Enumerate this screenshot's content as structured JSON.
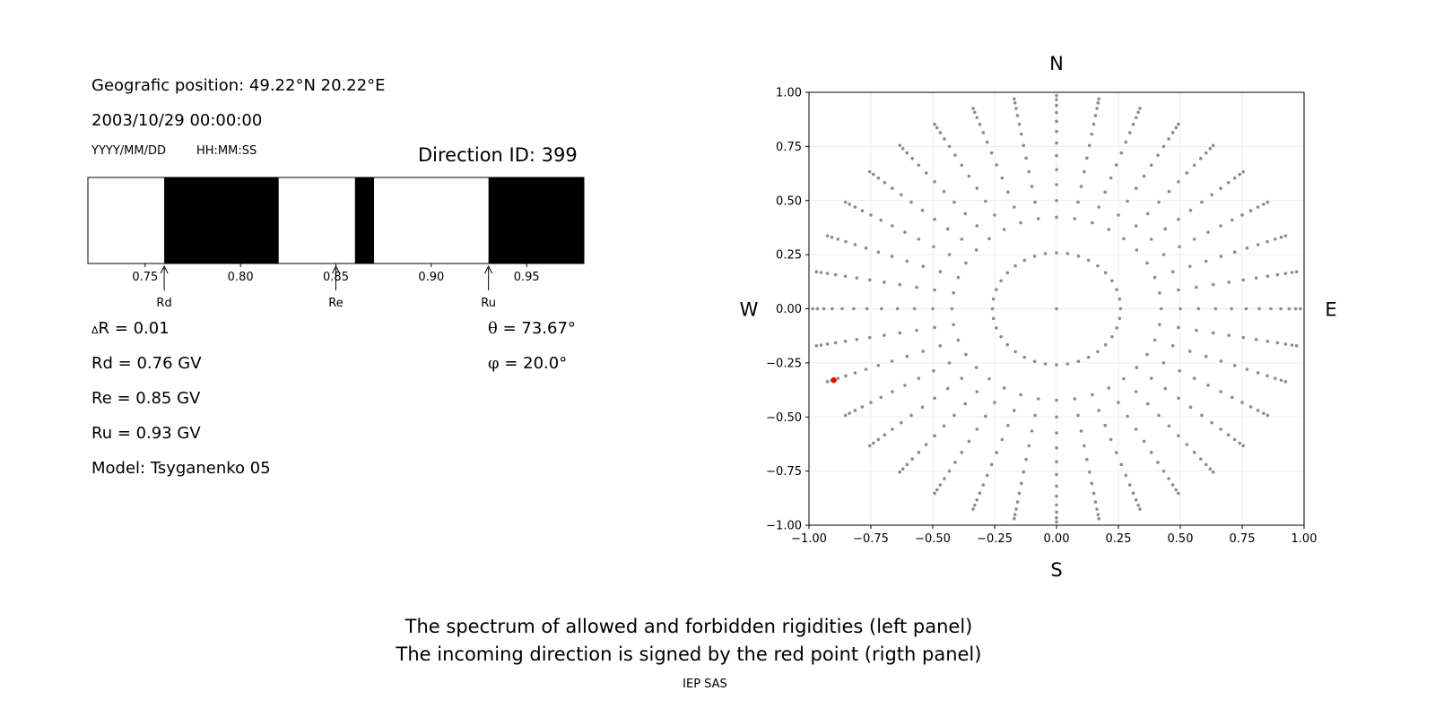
{
  "info": {
    "position": "Geografic position: 49.22°N 20.22°E",
    "datetime": "2003/10/29 00:00:00",
    "date_format": "YYYY/MM/DD",
    "time_format": "HH:MM:SS",
    "direction_id": "Direction ID: 399",
    "delta_r_symbol": "Δ",
    "delta_r": "R = 0.01",
    "rd": "Rd = 0.76 GV",
    "re": "Re = 0.85 GV",
    "ru": "Ru = 0.93 GV",
    "model": "Model: Tsyganenko 05",
    "theta_symbol": "θ",
    "theta": " = 73.67°",
    "phi_symbol": "φ",
    "phi": " = 20.0°"
  },
  "captions": {
    "line1": "The spectrum of allowed and forbidden rigidities (left panel)",
    "line2": "The incoming direction is signed by the red point (rigth panel)",
    "footer": "IEP SAS"
  },
  "chart_data": [
    {
      "type": "bar",
      "name": "rigidity-spectrum",
      "xlim": [
        0.72,
        0.98
      ],
      "xticks": [
        0.75,
        0.8,
        0.85,
        0.9,
        0.95
      ],
      "tick_labels": [
        "0.75",
        "0.80",
        "0.85",
        "0.90",
        "0.95"
      ],
      "forbidden_bands": [
        [
          0.76,
          0.82
        ],
        [
          0.86,
          0.87
        ],
        [
          0.93,
          0.98
        ]
      ],
      "markers": [
        {
          "label": "Rd",
          "value": 0.76
        },
        {
          "label": "Re",
          "value": 0.85
        },
        {
          "label": "Ru",
          "value": 0.93
        }
      ],
      "colors": {
        "forbidden": "#000000",
        "allowed": "#ffffff"
      }
    },
    {
      "type": "scatter",
      "name": "direction-map",
      "xlim": [
        -1.0,
        1.0
      ],
      "ylim": [
        -1.0,
        1.0
      ],
      "xticks": [
        -1.0,
        -0.75,
        -0.5,
        -0.25,
        0.0,
        0.25,
        0.5,
        0.75,
        1.0
      ],
      "yticks": [
        -1.0,
        -0.75,
        -0.5,
        -0.25,
        0.0,
        0.25,
        0.5,
        0.75,
        1.0
      ],
      "xtick_labels": [
        "−1.00",
        "−0.75",
        "−0.50",
        "−0.25",
        "0.00",
        "0.25",
        "0.50",
        "0.75",
        "1.00"
      ],
      "ytick_labels": [
        "−1.00",
        "−0.75",
        "−0.50",
        "−0.25",
        "0.00",
        "0.25",
        "0.50",
        "0.75",
        "1.00"
      ],
      "grid": true,
      "compass": {
        "north": "N",
        "south": "S",
        "west": "W",
        "east": "E"
      },
      "grid_points": {
        "azimuth_step_deg": 10,
        "zenith_step_deg": 5,
        "zenith_max_deg": 80,
        "inner_ring_step_deg": 10,
        "inner_ring_zenith_deg": 15,
        "color": "#8c8c8c"
      },
      "highlight": {
        "x": -0.9,
        "y": -0.33,
        "color": "#ff0000"
      }
    }
  ]
}
